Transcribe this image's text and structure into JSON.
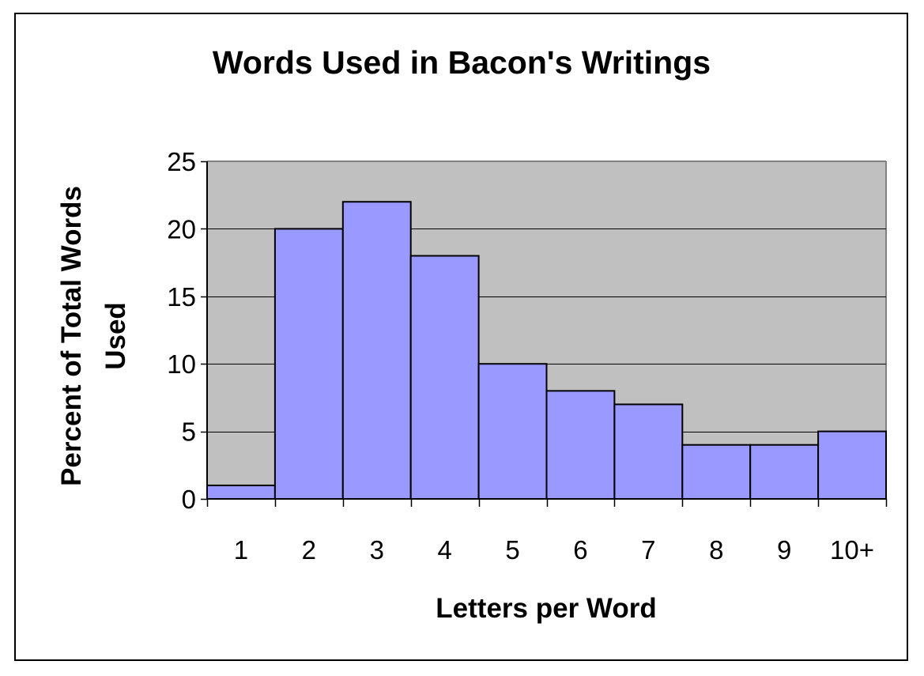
{
  "chart_data": {
    "type": "bar",
    "title": "Words Used in Bacon's Writings",
    "xlabel": "Letters per Word",
    "ylabel_lines": [
      "Percent of Total Words",
      "Used"
    ],
    "categories": [
      "1",
      "2",
      "3",
      "4",
      "5",
      "6",
      "7",
      "8",
      "9",
      "10+"
    ],
    "values": [
      1,
      20,
      22,
      18,
      10,
      8,
      7,
      4,
      4,
      5
    ],
    "ylim": [
      0,
      25
    ],
    "yticks": [
      0,
      5,
      10,
      15,
      20,
      25
    ],
    "grid": true,
    "legend": "none",
    "colors": {
      "bar_fill": "#9999ff",
      "bar_stroke": "#000000",
      "plot_background": "#c0c0c0",
      "gridline": "#000000"
    }
  }
}
